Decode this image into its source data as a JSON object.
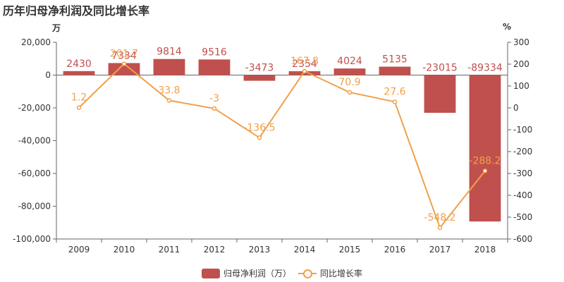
{
  "title": "历年归母净利润及同比增长率",
  "left_unit": "万",
  "right_unit": "%",
  "colors": {
    "bar": "#c0504d",
    "line": "#f0a04b",
    "axis_text": "#333333"
  },
  "legend": {
    "bar_label": "归母净利润（万）",
    "line_label": "同比增长率"
  },
  "chart_data": {
    "type": "bar",
    "categories": [
      "2009",
      "2010",
      "2011",
      "2012",
      "2013",
      "2014",
      "2015",
      "2016",
      "2017",
      "2018"
    ],
    "series": [
      {
        "name": "归母净利润（万）",
        "type": "bar",
        "axis": "left",
        "values": [
          2430,
          7334,
          9814,
          9516,
          -3473,
          2354,
          4024,
          5135,
          -23015,
          -89334
        ],
        "labels": [
          "2430",
          "7334",
          "9814",
          "9516",
          "-3473",
          "2354",
          "4024",
          "5135",
          "-23015",
          "-89334"
        ]
      },
      {
        "name": "同比增长率",
        "type": "line",
        "axis": "right",
        "values": [
          1.2,
          201.7,
          33.8,
          -3,
          -136.5,
          167.8,
          70.9,
          27.6,
          -548.2,
          -288.2
        ],
        "labels": [
          "1.2",
          "201.7",
          "33.8",
          "-3",
          "-136.5",
          "167.8",
          "70.9",
          "27.6",
          "-548.2",
          "-288.2"
        ]
      }
    ],
    "y_left": {
      "min": -100000,
      "max": 20000,
      "ticks": [
        20000,
        0,
        -20000,
        -40000,
        -60000,
        -80000,
        -100000
      ],
      "tick_labels": [
        "20,000",
        "0",
        "-20,000",
        "-40,000",
        "-60,000",
        "-80,000",
        "-100,000"
      ]
    },
    "y_right": {
      "min": -600,
      "max": 300,
      "ticks": [
        300,
        200,
        100,
        0,
        -100,
        -200,
        -300,
        -400,
        -500,
        -600
      ],
      "tick_labels": [
        "300",
        "200",
        "100",
        "0",
        "-100",
        "-200",
        "-300",
        "-400",
        "-500",
        "-600"
      ]
    },
    "grid": false,
    "legend_position": "bottom"
  }
}
